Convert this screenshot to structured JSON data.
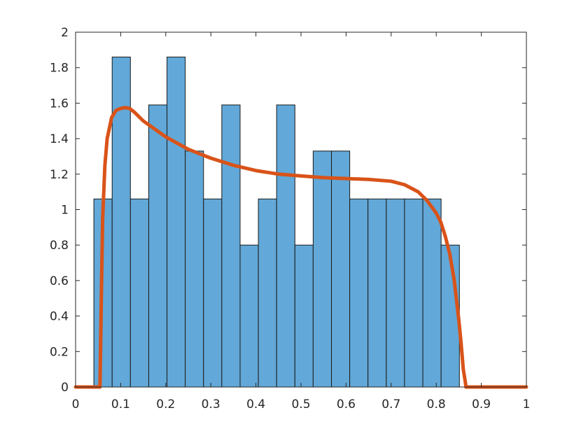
{
  "chart_data": {
    "type": "bar",
    "title": "",
    "xlabel": "",
    "ylabel": "",
    "xlim": [
      0,
      1
    ],
    "ylim": [
      0,
      2
    ],
    "grid": false,
    "x_ticks": [
      "0",
      "0.1",
      "0.2",
      "0.3",
      "0.4",
      "0.5",
      "0.6",
      "0.7",
      "0.8",
      "0.9",
      "1"
    ],
    "y_ticks": [
      "0",
      "0.2",
      "0.4",
      "0.6",
      "0.8",
      "1",
      "1.2",
      "1.4",
      "1.6",
      "1.8",
      "2"
    ],
    "bar_color": "#62a8d8",
    "curve_color": "#d95319",
    "series": [
      {
        "type": "histogram",
        "bin_edges": [
          0.0405,
          0.0811,
          0.1216,
          0.1622,
          0.2027,
          0.2432,
          0.2838,
          0.3243,
          0.3649,
          0.4054,
          0.4459,
          0.4865,
          0.527,
          0.5676,
          0.6081,
          0.6486,
          0.6892,
          0.7297,
          0.7703,
          0.8108,
          0.8514
        ],
        "values": [
          1.06,
          1.86,
          1.06,
          1.59,
          1.86,
          1.33,
          1.06,
          1.59,
          0.8,
          1.06,
          1.59,
          0.8,
          1.33,
          1.33,
          1.06,
          1.06,
          1.06,
          1.06,
          1.06,
          0.8
        ]
      },
      {
        "type": "line",
        "x": [
          0,
          0.054,
          0.055,
          0.057,
          0.06,
          0.065,
          0.07,
          0.08,
          0.09,
          0.1,
          0.11,
          0.12,
          0.13,
          0.15,
          0.2,
          0.25,
          0.3,
          0.35,
          0.4,
          0.45,
          0.5,
          0.55,
          0.6,
          0.65,
          0.7,
          0.73,
          0.76,
          0.78,
          0.8,
          0.81,
          0.82,
          0.83,
          0.84,
          0.85,
          0.855,
          0.86,
          0.865,
          0.866,
          1
        ],
        "values": [
          0,
          0,
          0.15,
          0.5,
          0.95,
          1.25,
          1.4,
          1.52,
          1.56,
          1.57,
          1.575,
          1.57,
          1.55,
          1.5,
          1.41,
          1.34,
          1.29,
          1.25,
          1.22,
          1.2,
          1.19,
          1.18,
          1.175,
          1.17,
          1.16,
          1.14,
          1.1,
          1.05,
          0.98,
          0.93,
          0.85,
          0.75,
          0.6,
          0.38,
          0.25,
          0.1,
          0.02,
          0,
          0
        ]
      }
    ]
  }
}
